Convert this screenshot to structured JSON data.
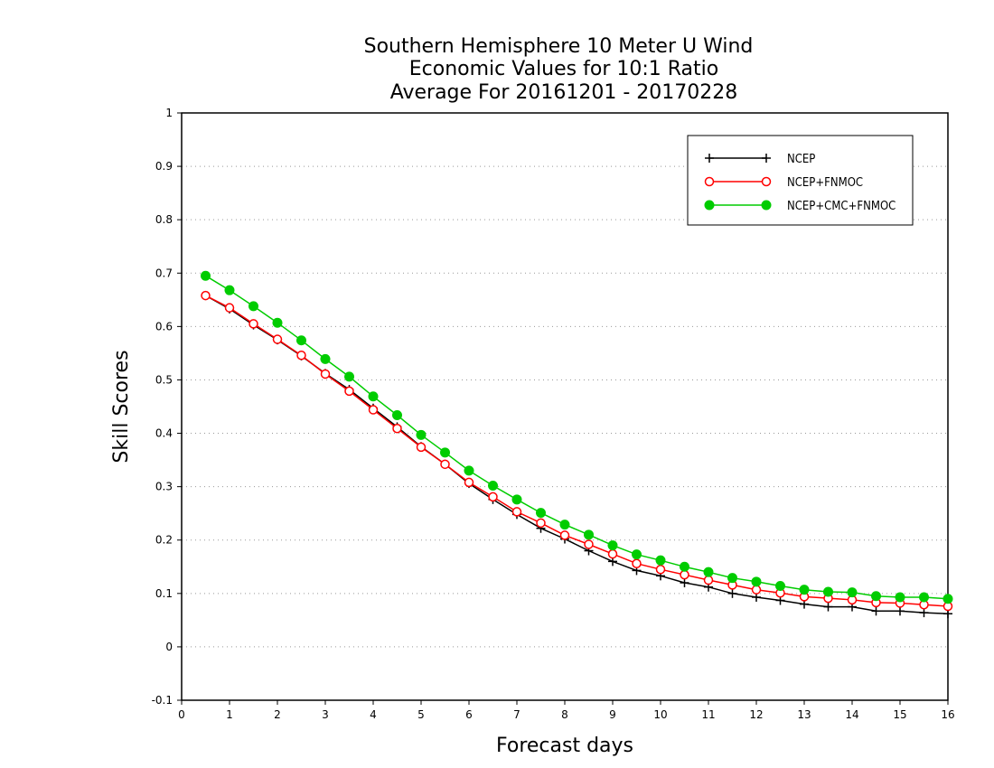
{
  "chart_data": {
    "type": "line",
    "title_lines": [
      "Southern Hemisphere 10 Meter U Wind",
      "Economic Values for 10:1 Ratio",
      "Average For 20161201 - 20170228"
    ],
    "xlabel": "Forecast days",
    "ylabel": "Skill Scores",
    "xlim": [
      0,
      16
    ],
    "ylim": [
      -0.1,
      1
    ],
    "xticks": [
      "0",
      "1",
      "2",
      "3",
      "4",
      "5",
      "6",
      "7",
      "8",
      "9",
      "10",
      "11",
      "12",
      "13",
      "14",
      "15",
      "16"
    ],
    "yticks": [
      "-0.1",
      "0",
      "0.1",
      "0.2",
      "0.3",
      "0.4",
      "0.5",
      "0.6",
      "0.7",
      "0.8",
      "0.9",
      "1"
    ],
    "grid": "horizontal dotted",
    "legend_position": "top-right",
    "x": [
      0.5,
      1,
      1.5,
      2,
      2.5,
      3,
      3.5,
      4,
      4.5,
      5,
      5.5,
      6,
      6.5,
      7,
      7.5,
      8,
      8.5,
      9,
      9.5,
      10,
      10.5,
      11,
      11.5,
      12,
      12.5,
      13,
      13.5,
      14,
      14.5,
      15,
      15.5,
      16
    ],
    "series": [
      {
        "name": "NCEP",
        "color": "#000000",
        "marker": "plus",
        "values": [
          0.658,
          0.633,
          0.603,
          0.575,
          0.545,
          0.512,
          0.482,
          0.447,
          0.412,
          0.375,
          0.342,
          0.306,
          0.276,
          0.248,
          0.222,
          0.202,
          0.18,
          0.16,
          0.143,
          0.133,
          0.12,
          0.112,
          0.1,
          0.093,
          0.087,
          0.08,
          0.075,
          0.075,
          0.067,
          0.067,
          0.064,
          0.062
        ]
      },
      {
        "name": "NCEP+FNMOC",
        "color": "#ff0000",
        "marker": "open-circle",
        "values": [
          0.658,
          0.635,
          0.605,
          0.576,
          0.546,
          0.511,
          0.479,
          0.444,
          0.409,
          0.374,
          0.342,
          0.308,
          0.281,
          0.253,
          0.232,
          0.209,
          0.192,
          0.174,
          0.156,
          0.145,
          0.135,
          0.125,
          0.116,
          0.107,
          0.101,
          0.094,
          0.091,
          0.088,
          0.083,
          0.082,
          0.079,
          0.076
        ]
      },
      {
        "name": "NCEP+CMC+FNMOC",
        "color": "#00cc00",
        "marker": "filled-circle",
        "values": [
          0.695,
          0.668,
          0.638,
          0.607,
          0.574,
          0.539,
          0.506,
          0.469,
          0.434,
          0.397,
          0.364,
          0.33,
          0.302,
          0.276,
          0.251,
          0.229,
          0.21,
          0.19,
          0.173,
          0.162,
          0.15,
          0.14,
          0.129,
          0.122,
          0.114,
          0.107,
          0.103,
          0.102,
          0.095,
          0.093,
          0.093,
          0.09
        ]
      }
    ]
  }
}
